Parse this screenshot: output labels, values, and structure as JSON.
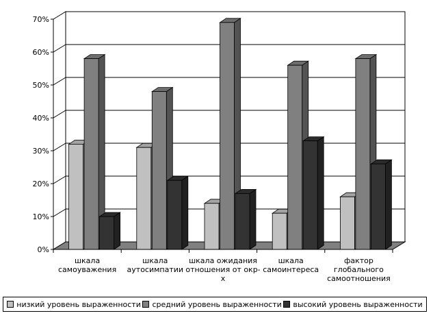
{
  "chart_data": {
    "type": "bar",
    "title": "",
    "xlabel": "",
    "ylabel": "",
    "ylim": [
      0,
      70
    ],
    "yticks": [
      "0%",
      "10%",
      "20%",
      "30%",
      "40%",
      "50%",
      "60%",
      "70%"
    ],
    "grid": true,
    "legend_position": "bottom",
    "categories": [
      [
        "шкала",
        "самоуважения"
      ],
      [
        "шкала",
        "аутосимпатии"
      ],
      [
        "шкала ожидания",
        "отношения от окр-",
        "х"
      ],
      [
        "шкала",
        "самоинтереса"
      ],
      [
        "фактор",
        "глобального",
        "самоотношения"
      ]
    ],
    "series": [
      {
        "name": "низкий уровень выраженности",
        "values": [
          32,
          31,
          14,
          11,
          16
        ],
        "color": "#c0c0c0"
      },
      {
        "name": "средний уровень выраженности",
        "values": [
          58,
          48,
          69,
          56,
          58
        ],
        "color": "#808080"
      },
      {
        "name": "высокий уровень выраженности",
        "values": [
          10,
          21,
          17,
          33,
          26
        ],
        "color": "#333333"
      }
    ]
  }
}
